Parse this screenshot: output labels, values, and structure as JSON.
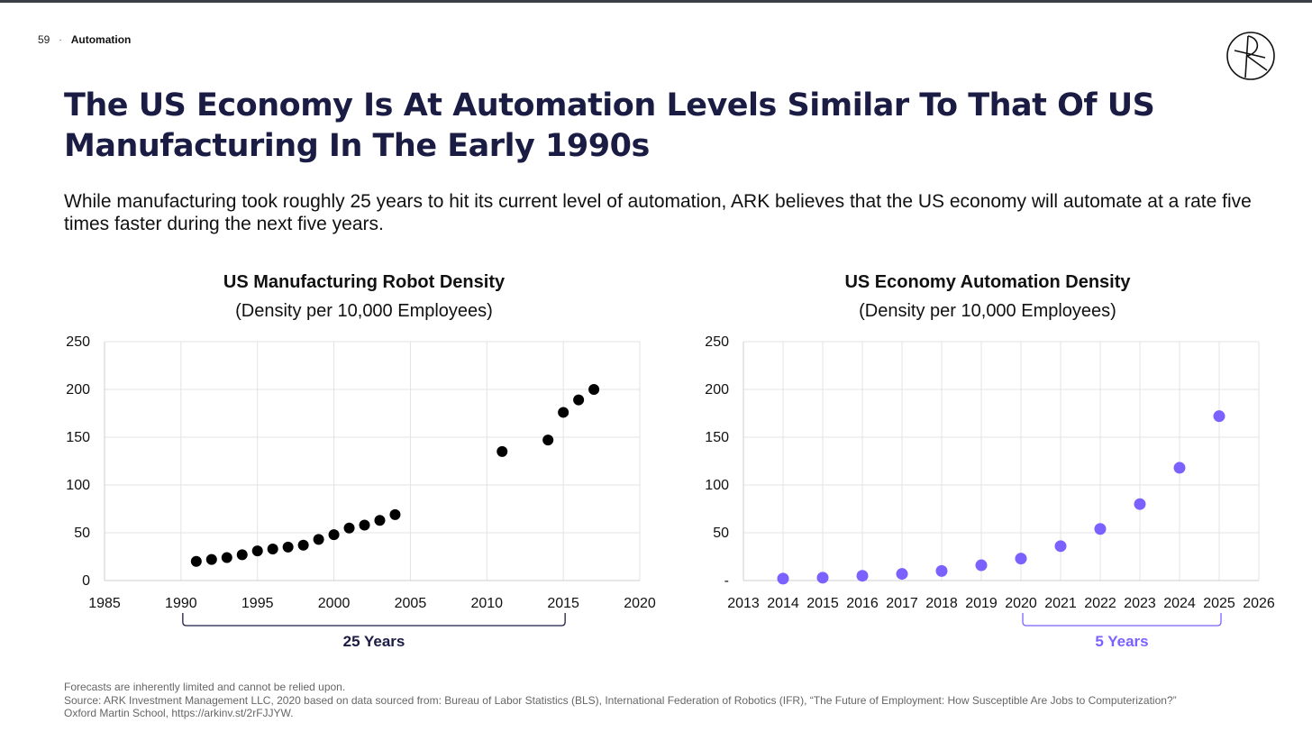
{
  "header": {
    "page_number": "59",
    "separator": "·",
    "section": "Automation"
  },
  "title": "The US Economy Is At Automation Levels Similar To That Of US Manufacturing In The Early 1990s",
  "subtitle": "While manufacturing took roughly 25 years to hit its current level of automation, ARK believes that the US economy will automate at a rate five times faster during the next five years.",
  "colors": {
    "title": "#1b1c44",
    "left_series": "#000000",
    "right_series": "#7b61ff",
    "right_accent": "#7b61ff",
    "grid": "#e3e3e3"
  },
  "chart_data": [
    {
      "type": "scatter",
      "title": "US Manufacturing Robot Density",
      "subtitle": "(Density per 10,000 Employees)",
      "xlim": [
        1985,
        2020
      ],
      "ylim": [
        0,
        250
      ],
      "x_ticks": [
        "1985",
        "1990",
        "1995",
        "2000",
        "2005",
        "2010",
        "2015",
        "2020"
      ],
      "y_ticks": [
        "0",
        "50",
        "100",
        "150",
        "200",
        "250"
      ],
      "grid": true,
      "series": [
        {
          "color": "#000000",
          "points": [
            [
              1991,
              20
            ],
            [
              1992,
              22
            ],
            [
              1993,
              24
            ],
            [
              1994,
              27
            ],
            [
              1995,
              31
            ],
            [
              1996,
              33
            ],
            [
              1997,
              35
            ],
            [
              1998,
              37
            ],
            [
              1999,
              43
            ],
            [
              2000,
              48
            ],
            [
              2001,
              55
            ],
            [
              2002,
              58
            ],
            [
              2003,
              63
            ],
            [
              2004,
              69
            ],
            [
              2011,
              135
            ],
            [
              2014,
              147
            ],
            [
              2015,
              176
            ],
            [
              2016,
              189
            ],
            [
              2017,
              200
            ]
          ]
        }
      ],
      "bracket": {
        "from": 1990,
        "to": 2015,
        "label": "25 Years"
      }
    },
    {
      "type": "scatter",
      "title": "US Economy Automation Density",
      "subtitle": "(Density per 10,000 Employees)",
      "xlim": [
        2013,
        2026
      ],
      "ylim": [
        0,
        250
      ],
      "x_ticks": [
        "2013",
        "2014",
        "2015",
        "2016",
        "2017",
        "2018",
        "2019",
        "2020",
        "2021",
        "2022",
        "2023",
        "2024",
        "2025",
        "2026"
      ],
      "y_ticks": [
        "-",
        "50",
        "100",
        "150",
        "200",
        "250"
      ],
      "grid": true,
      "series": [
        {
          "color": "#7b61ff",
          "points": [
            [
              2014,
              2
            ],
            [
              2015,
              3
            ],
            [
              2016,
              5
            ],
            [
              2017,
              7
            ],
            [
              2018,
              10
            ],
            [
              2019,
              16
            ],
            [
              2020,
              23
            ],
            [
              2021,
              36
            ],
            [
              2022,
              54
            ],
            [
              2023,
              80
            ],
            [
              2024,
              118
            ],
            [
              2025,
              172
            ]
          ]
        }
      ],
      "bracket": {
        "from": 2020,
        "to": 2025,
        "label": "5 Years"
      }
    }
  ],
  "footer": {
    "disclaimer": "Forecasts are inherently limited and cannot be relied upon.",
    "source_line1": "Source: ARK Investment Management LLC, 2020 based on data sourced from: Bureau of Labor Statistics (BLS), International Federation of Robotics (IFR), “The Future of Employment: How Susceptible Are Jobs to Computerization?”",
    "source_line2": "Oxford Martin School, https://arkinv.st/2rFJJYW."
  }
}
